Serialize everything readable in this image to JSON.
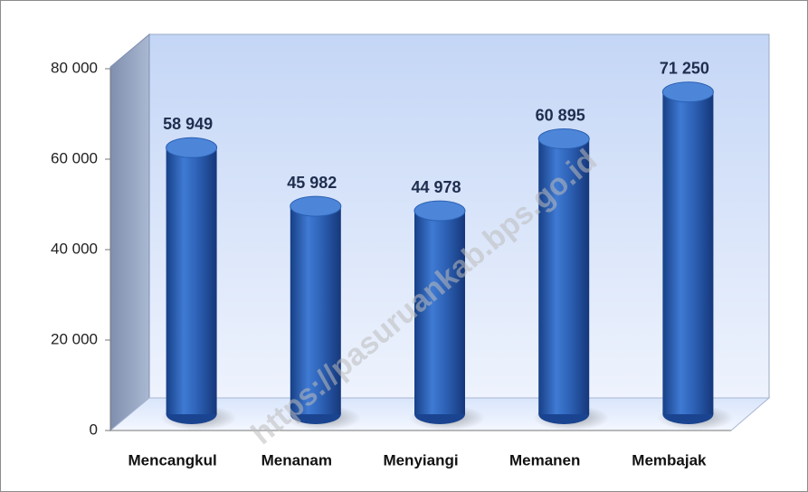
{
  "chart_data": {
    "type": "bar",
    "categories": [
      "Mencangkul",
      "Menanam",
      "Menyiangi",
      "Memanen",
      "Membajak"
    ],
    "values": [
      58949,
      45982,
      44978,
      60895,
      71250
    ],
    "value_labels": [
      "58 949",
      "45 982",
      "44 978",
      "60 895",
      "71 250"
    ],
    "color": "#2e63b8",
    "ylim": [
      0,
      80000
    ],
    "yticks": [
      0,
      {
        "value": 20000,
        "label": "20 000"
      },
      {
        "value": 40000,
        "label": "40 000"
      },
      {
        "value": 60000,
        "label": "60 000"
      },
      {
        "value": 80000,
        "label": "80 000"
      }
    ],
    "watermark": "https://pasuruankab.bps.go.id"
  }
}
